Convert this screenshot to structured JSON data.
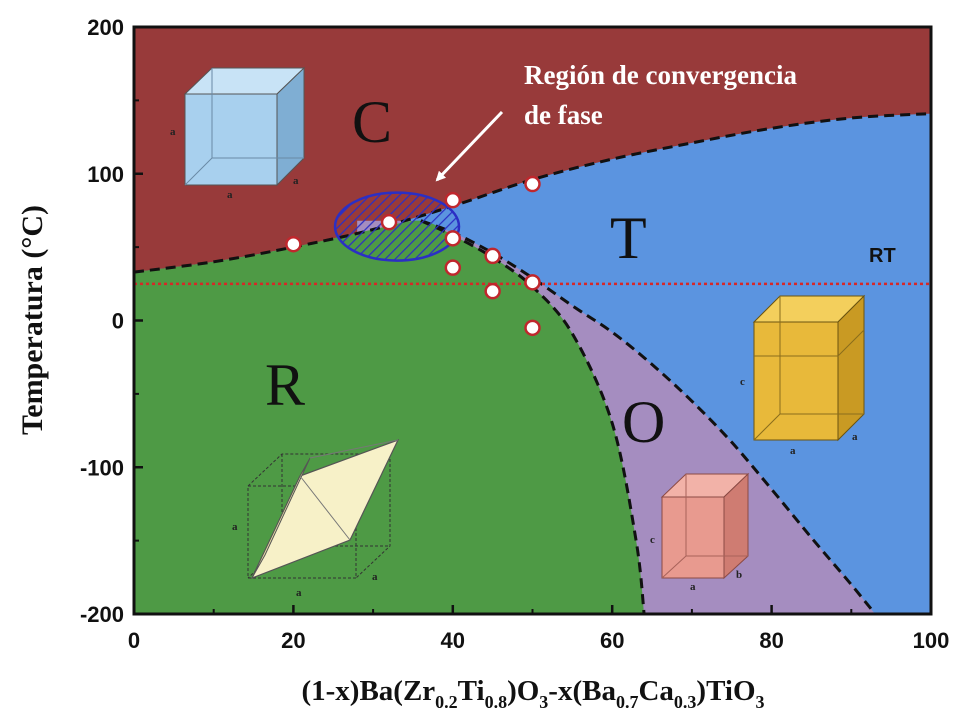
{
  "chart_data": {
    "type": "area",
    "xlabel_parts": {
      "p1": "(1-x)Ba(Zr",
      "s1": "0.2",
      "p2": "Ti",
      "s2": "0.8",
      "p3": ")O",
      "s3": "3",
      "p4": "-x(Ba",
      "s4": "0.7",
      "p5": "Ca",
      "s5": "0.3",
      "p6": ")TiO",
      "s6": "3"
    },
    "ylabel": "Temperatura (°C)",
    "xlim": [
      0,
      100
    ],
    "ylim": [
      -200,
      200
    ],
    "x_ticks": [
      "0",
      "20",
      "40",
      "60",
      "80",
      "100"
    ],
    "x_tick_values": [
      0,
      20,
      40,
      60,
      80,
      100
    ],
    "y_ticks": [
      "200",
      "100",
      "0",
      "-100",
      "-200"
    ],
    "y_tick_values": [
      200,
      100,
      0,
      -100,
      -200
    ],
    "regions": [
      {
        "name": "C",
        "color": "#983a3a"
      },
      {
        "name": "T",
        "color": "#5b94e0"
      },
      {
        "name": "R",
        "color": "#4e9a45"
      },
      {
        "name": "O",
        "color": "#a58dc0"
      }
    ],
    "boundaries": {
      "C_lower": [
        [
          0,
          33
        ],
        [
          10,
          40
        ],
        [
          20,
          50
        ],
        [
          30,
          62
        ],
        [
          40,
          78
        ],
        [
          50,
          96
        ],
        [
          60,
          110
        ],
        [
          70,
          121
        ],
        [
          80,
          131
        ],
        [
          90,
          138
        ],
        [
          100,
          141
        ]
      ],
      "R_upper": [
        [
          0,
          33
        ],
        [
          10,
          40
        ],
        [
          20,
          50
        ],
        [
          30,
          62
        ],
        [
          36,
          68
        ],
        [
          40,
          58
        ],
        [
          45,
          43
        ],
        [
          50,
          23
        ],
        [
          55,
          -9
        ],
        [
          60,
          -70
        ],
        [
          63,
          -150
        ],
        [
          64,
          -200
        ]
      ],
      "O_T": [
        [
          36,
          68
        ],
        [
          40,
          60
        ],
        [
          45,
          46
        ],
        [
          50,
          29
        ],
        [
          55,
          10
        ],
        [
          60,
          -8
        ],
        [
          65,
          -30
        ],
        [
          70,
          -55
        ],
        [
          75,
          -83
        ],
        [
          80,
          -115
        ],
        [
          85,
          -148
        ],
        [
          90,
          -180
        ],
        [
          93,
          -200
        ]
      ]
    },
    "data_points": [
      {
        "x": 20,
        "y": 52
      },
      {
        "x": 32,
        "y": 67
      },
      {
        "x": 40,
        "y": 82
      },
      {
        "x": 40,
        "y": 56
      },
      {
        "x": 40,
        "y": 36
      },
      {
        "x": 45,
        "y": 44
      },
      {
        "x": 45,
        "y": 20
      },
      {
        "x": 50,
        "y": 93
      },
      {
        "x": 50,
        "y": 26
      },
      {
        "x": 50,
        "y": -5
      }
    ],
    "room_temperature": {
      "label": "RT",
      "y": 25,
      "color": "#d62828"
    },
    "convergence_region": {
      "x": 33,
      "y": 64,
      "color": "#2b2fc4"
    },
    "annotation": {
      "line1": "Región de convergencia",
      "line2": "de fase"
    },
    "unit_cell_labels": {
      "a": "a",
      "b": "b",
      "c": "c"
    }
  }
}
